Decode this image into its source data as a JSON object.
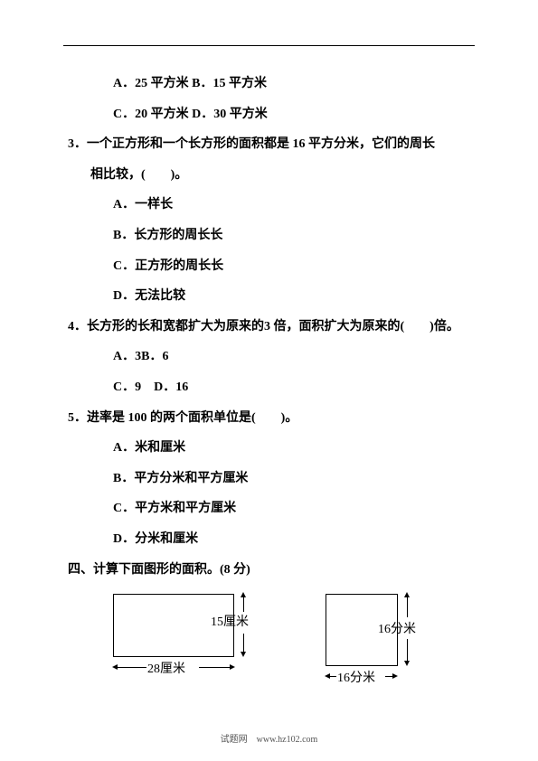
{
  "q2": {
    "optA": "A．25 平方米",
    "optB": "B．15 平方米",
    "optC": "C．20 平方米",
    "optD": "D．30 平方米"
  },
  "q3": {
    "text": "3．一个正方形和一个长方形的面积都是 16 平方分米，它们的周长",
    "text2": "相比较，(　　)。",
    "optA": "A．一样长",
    "optB": "B．长方形的周长长",
    "optC": "C．正方形的周长长",
    "optD": "D．无法比较"
  },
  "q4": {
    "text": "4．长方形的长和宽都扩大为原来的3 倍，面积扩大为原来的(　　)倍。",
    "optA": "A．3",
    "optB": "B．6",
    "optC": "C．9　",
    "optD": "D．16"
  },
  "q5": {
    "text": "5．进率是 100 的两个面积单位是(　　)。",
    "optA": "A．米和厘米",
    "optB": "B．平方分米和平方厘米",
    "optC": "C．平方米和平方厘米",
    "optD": "D．分米和厘米"
  },
  "section4": {
    "title": "四、计算下面图形的面积。(8 分)"
  },
  "fig1": {
    "width_label": "28厘米",
    "height_label": "15厘米"
  },
  "fig2": {
    "width_label": "16分米",
    "height_label": "16分米"
  },
  "footer": "试题网　www.hz102.com"
}
